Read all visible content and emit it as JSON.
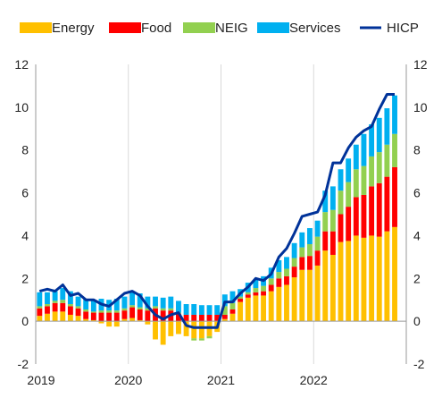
{
  "chart_data": {
    "type": "bar",
    "stacked": true,
    "x_tick_labels": [
      "2019",
      "2020",
      "2021",
      "2022"
    ],
    "x_start": "2019-01",
    "ylim": [
      -2,
      12
    ],
    "y_ticks": [
      -2,
      0,
      2,
      4,
      6,
      8,
      10,
      12
    ],
    "grid": "vertical lines at year boundaries",
    "legend_position": "top",
    "colors": {
      "Energy": "#ffc000",
      "Food": "#ff0000",
      "NEIG": "#92d050",
      "Services": "#00b0f0",
      "HICP": "#003299"
    },
    "series": [
      {
        "name": "Energy",
        "values": [
          0.25,
          0.35,
          0.45,
          0.45,
          0.3,
          0.25,
          0.1,
          0.05,
          -0.1,
          -0.25,
          -0.25,
          0.1,
          0.15,
          0.05,
          -0.15,
          -0.85,
          -1.1,
          -0.7,
          -0.6,
          -0.7,
          -0.8,
          -0.8,
          -0.7,
          -0.5,
          0.1,
          0.35,
          0.9,
          1.1,
          1.2,
          1.2,
          1.4,
          1.6,
          1.7,
          2.05,
          2.4,
          2.4,
          2.6,
          3.3,
          3.1,
          3.7,
          3.75,
          4.0,
          3.9,
          4.0,
          3.95,
          4.2,
          4.4
        ]
      },
      {
        "name": "Food",
        "values": [
          0.35,
          0.35,
          0.4,
          0.4,
          0.4,
          0.35,
          0.35,
          0.35,
          0.4,
          0.4,
          0.4,
          0.4,
          0.5,
          0.5,
          0.5,
          0.6,
          0.5,
          0.5,
          0.35,
          0.3,
          0.3,
          0.3,
          0.3,
          0.3,
          0.2,
          0.2,
          0.15,
          0.15,
          0.15,
          0.2,
          0.3,
          0.4,
          0.4,
          0.5,
          0.6,
          0.65,
          0.7,
          0.9,
          1.1,
          1.3,
          1.6,
          1.8,
          2.0,
          2.3,
          2.5,
          2.55,
          2.8
        ]
      },
      {
        "name": "NEIG",
        "values": [
          0.1,
          0.1,
          0.1,
          0.15,
          0.1,
          0.1,
          0.1,
          0.05,
          0.1,
          0.1,
          0.1,
          0.1,
          0.1,
          0.1,
          0.1,
          0.1,
          0.1,
          0.1,
          0.05,
          0.0,
          -0.1,
          -0.1,
          -0.1,
          0.0,
          0.4,
          0.3,
          0.1,
          0.1,
          0.2,
          0.25,
          0.3,
          0.3,
          0.35,
          0.4,
          0.45,
          0.55,
          0.65,
          0.9,
          1.0,
          1.1,
          1.15,
          1.3,
          1.35,
          1.4,
          1.45,
          1.5,
          1.55
        ]
      },
      {
        "name": "Services",
        "values": [
          0.65,
          0.55,
          0.45,
          0.55,
          0.6,
          0.45,
          0.5,
          0.5,
          0.55,
          0.5,
          0.55,
          0.55,
          0.6,
          0.65,
          0.55,
          0.45,
          0.5,
          0.55,
          0.55,
          0.5,
          0.5,
          0.45,
          0.45,
          0.45,
          0.55,
          0.55,
          0.35,
          0.45,
          0.4,
          0.45,
          0.5,
          0.55,
          0.55,
          0.7,
          0.7,
          0.75,
          0.75,
          1.0,
          1.1,
          1.0,
          1.1,
          1.15,
          1.5,
          1.5,
          1.6,
          1.7,
          1.8
        ]
      },
      {
        "name": "HICP",
        "type": "line",
        "values": [
          1.4,
          1.5,
          1.4,
          1.7,
          1.2,
          1.3,
          1.0,
          1.0,
          0.8,
          0.7,
          1.0,
          1.3,
          1.4,
          1.2,
          0.7,
          0.3,
          0.1,
          0.3,
          0.4,
          -0.2,
          -0.3,
          -0.3,
          -0.3,
          -0.3,
          0.9,
          0.9,
          1.3,
          1.6,
          2.0,
          1.9,
          2.2,
          3.0,
          3.4,
          4.1,
          4.9,
          5.0,
          5.1,
          5.9,
          7.4,
          7.4,
          8.1,
          8.6,
          8.9,
          9.1,
          9.9,
          10.6,
          10.6
        ]
      }
    ]
  }
}
